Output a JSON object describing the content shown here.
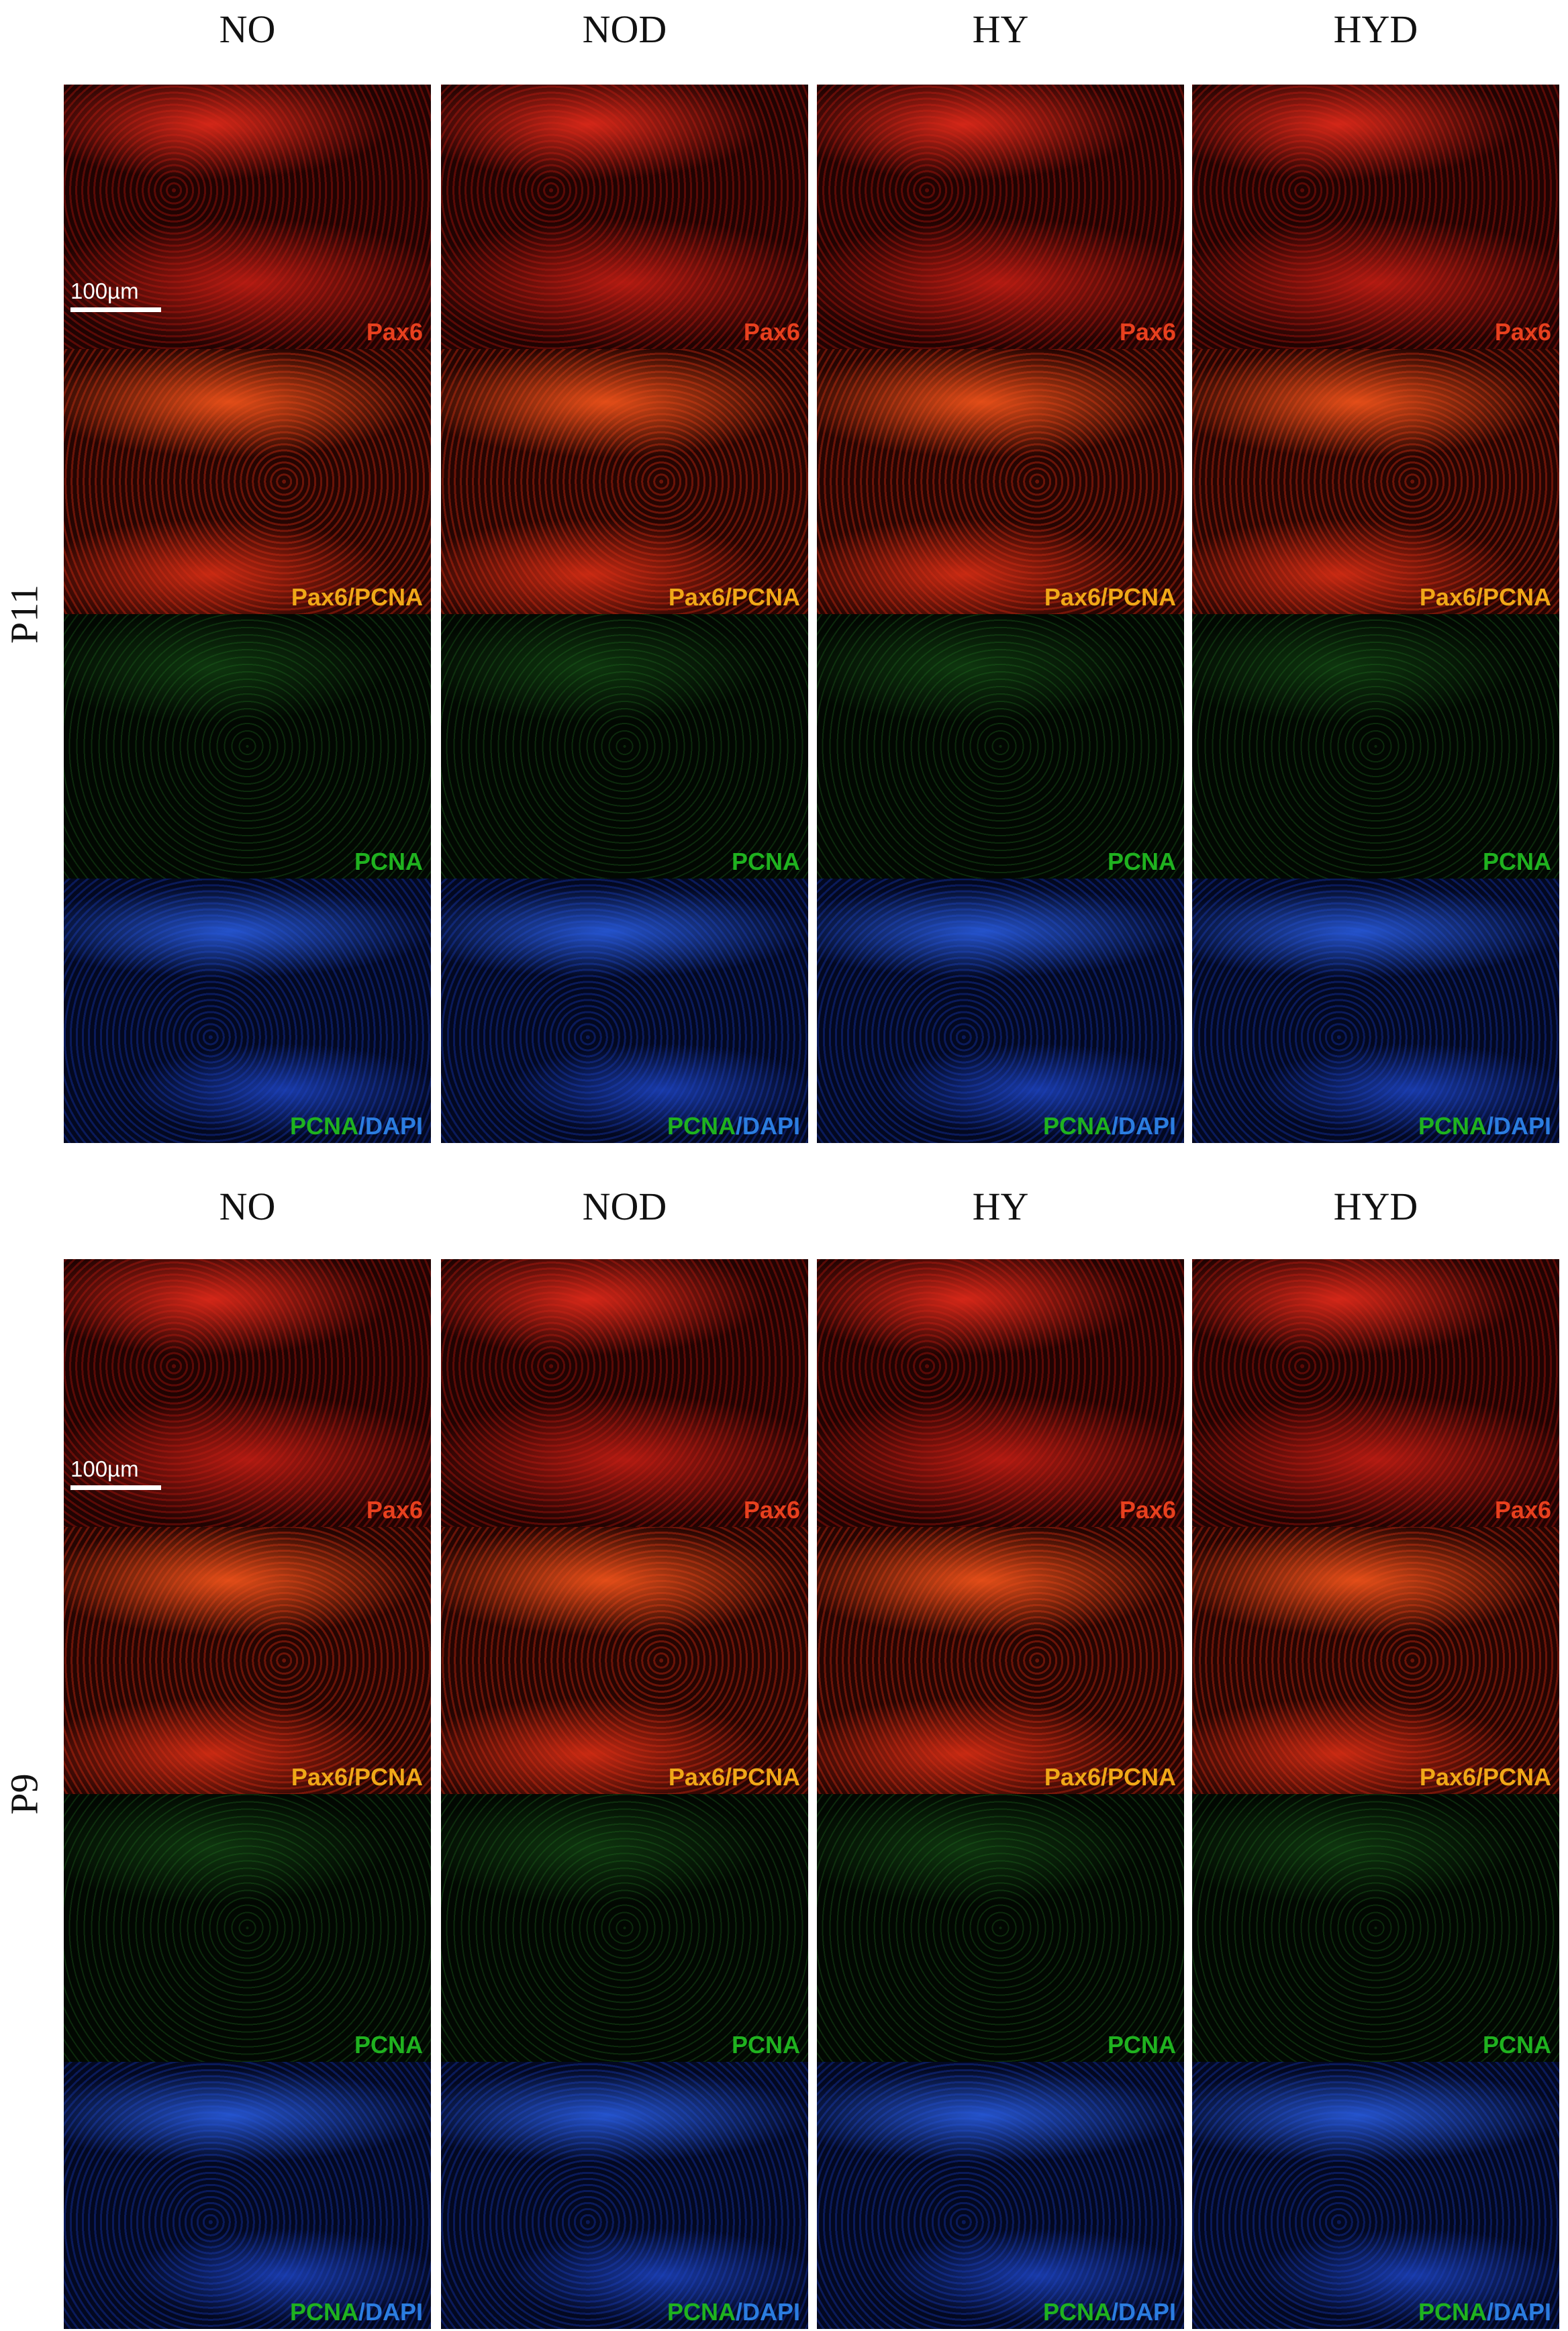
{
  "figure": {
    "groups": [
      {
        "row_label": "P11",
        "scale_bar": "100µm",
        "columns": [
          {
            "header": "NO",
            "labels": [
              "Pax6",
              "Pax6/PCNA",
              "PCNA"
            ],
            "merge_label": [
              "PCNA",
              "/DAPI"
            ]
          },
          {
            "header": "NOD",
            "labels": [
              "Pax6",
              "Pax6/PCNA",
              "PCNA"
            ],
            "merge_label": [
              "PCNA",
              "/DAPI"
            ]
          },
          {
            "header": "HY",
            "labels": [
              "Pax6",
              "Pax6/PCNA",
              "PCNA"
            ],
            "merge_label": [
              "PCNA",
              "/DAPI"
            ]
          },
          {
            "header": "HYD",
            "labels": [
              "Pax6",
              "Pax6/PCNA",
              "PCNA"
            ],
            "merge_label": [
              "PCNA",
              "/DAPI"
            ]
          }
        ]
      },
      {
        "row_label": "P9",
        "scale_bar": "100µm",
        "columns": [
          {
            "header": "NO",
            "labels": [
              "Pax6",
              "Pax6/PCNA",
              "PCNA"
            ],
            "merge_label": [
              "PCNA",
              "/DAPI"
            ]
          },
          {
            "header": "NOD",
            "labels": [
              "Pax6",
              "Pax6/PCNA",
              "PCNA"
            ],
            "merge_label": [
              "PCNA",
              "/DAPI"
            ]
          },
          {
            "header": "HY",
            "labels": [
              "Pax6",
              "Pax6/PCNA",
              "PCNA"
            ],
            "merge_label": [
              "PCNA",
              "/DAPI"
            ]
          },
          {
            "header": "HYD",
            "labels": [
              "Pax6",
              "Pax6/PCNA",
              "PCNA"
            ],
            "merge_label": [
              "PCNA",
              "/DAPI"
            ]
          }
        ]
      }
    ]
  }
}
